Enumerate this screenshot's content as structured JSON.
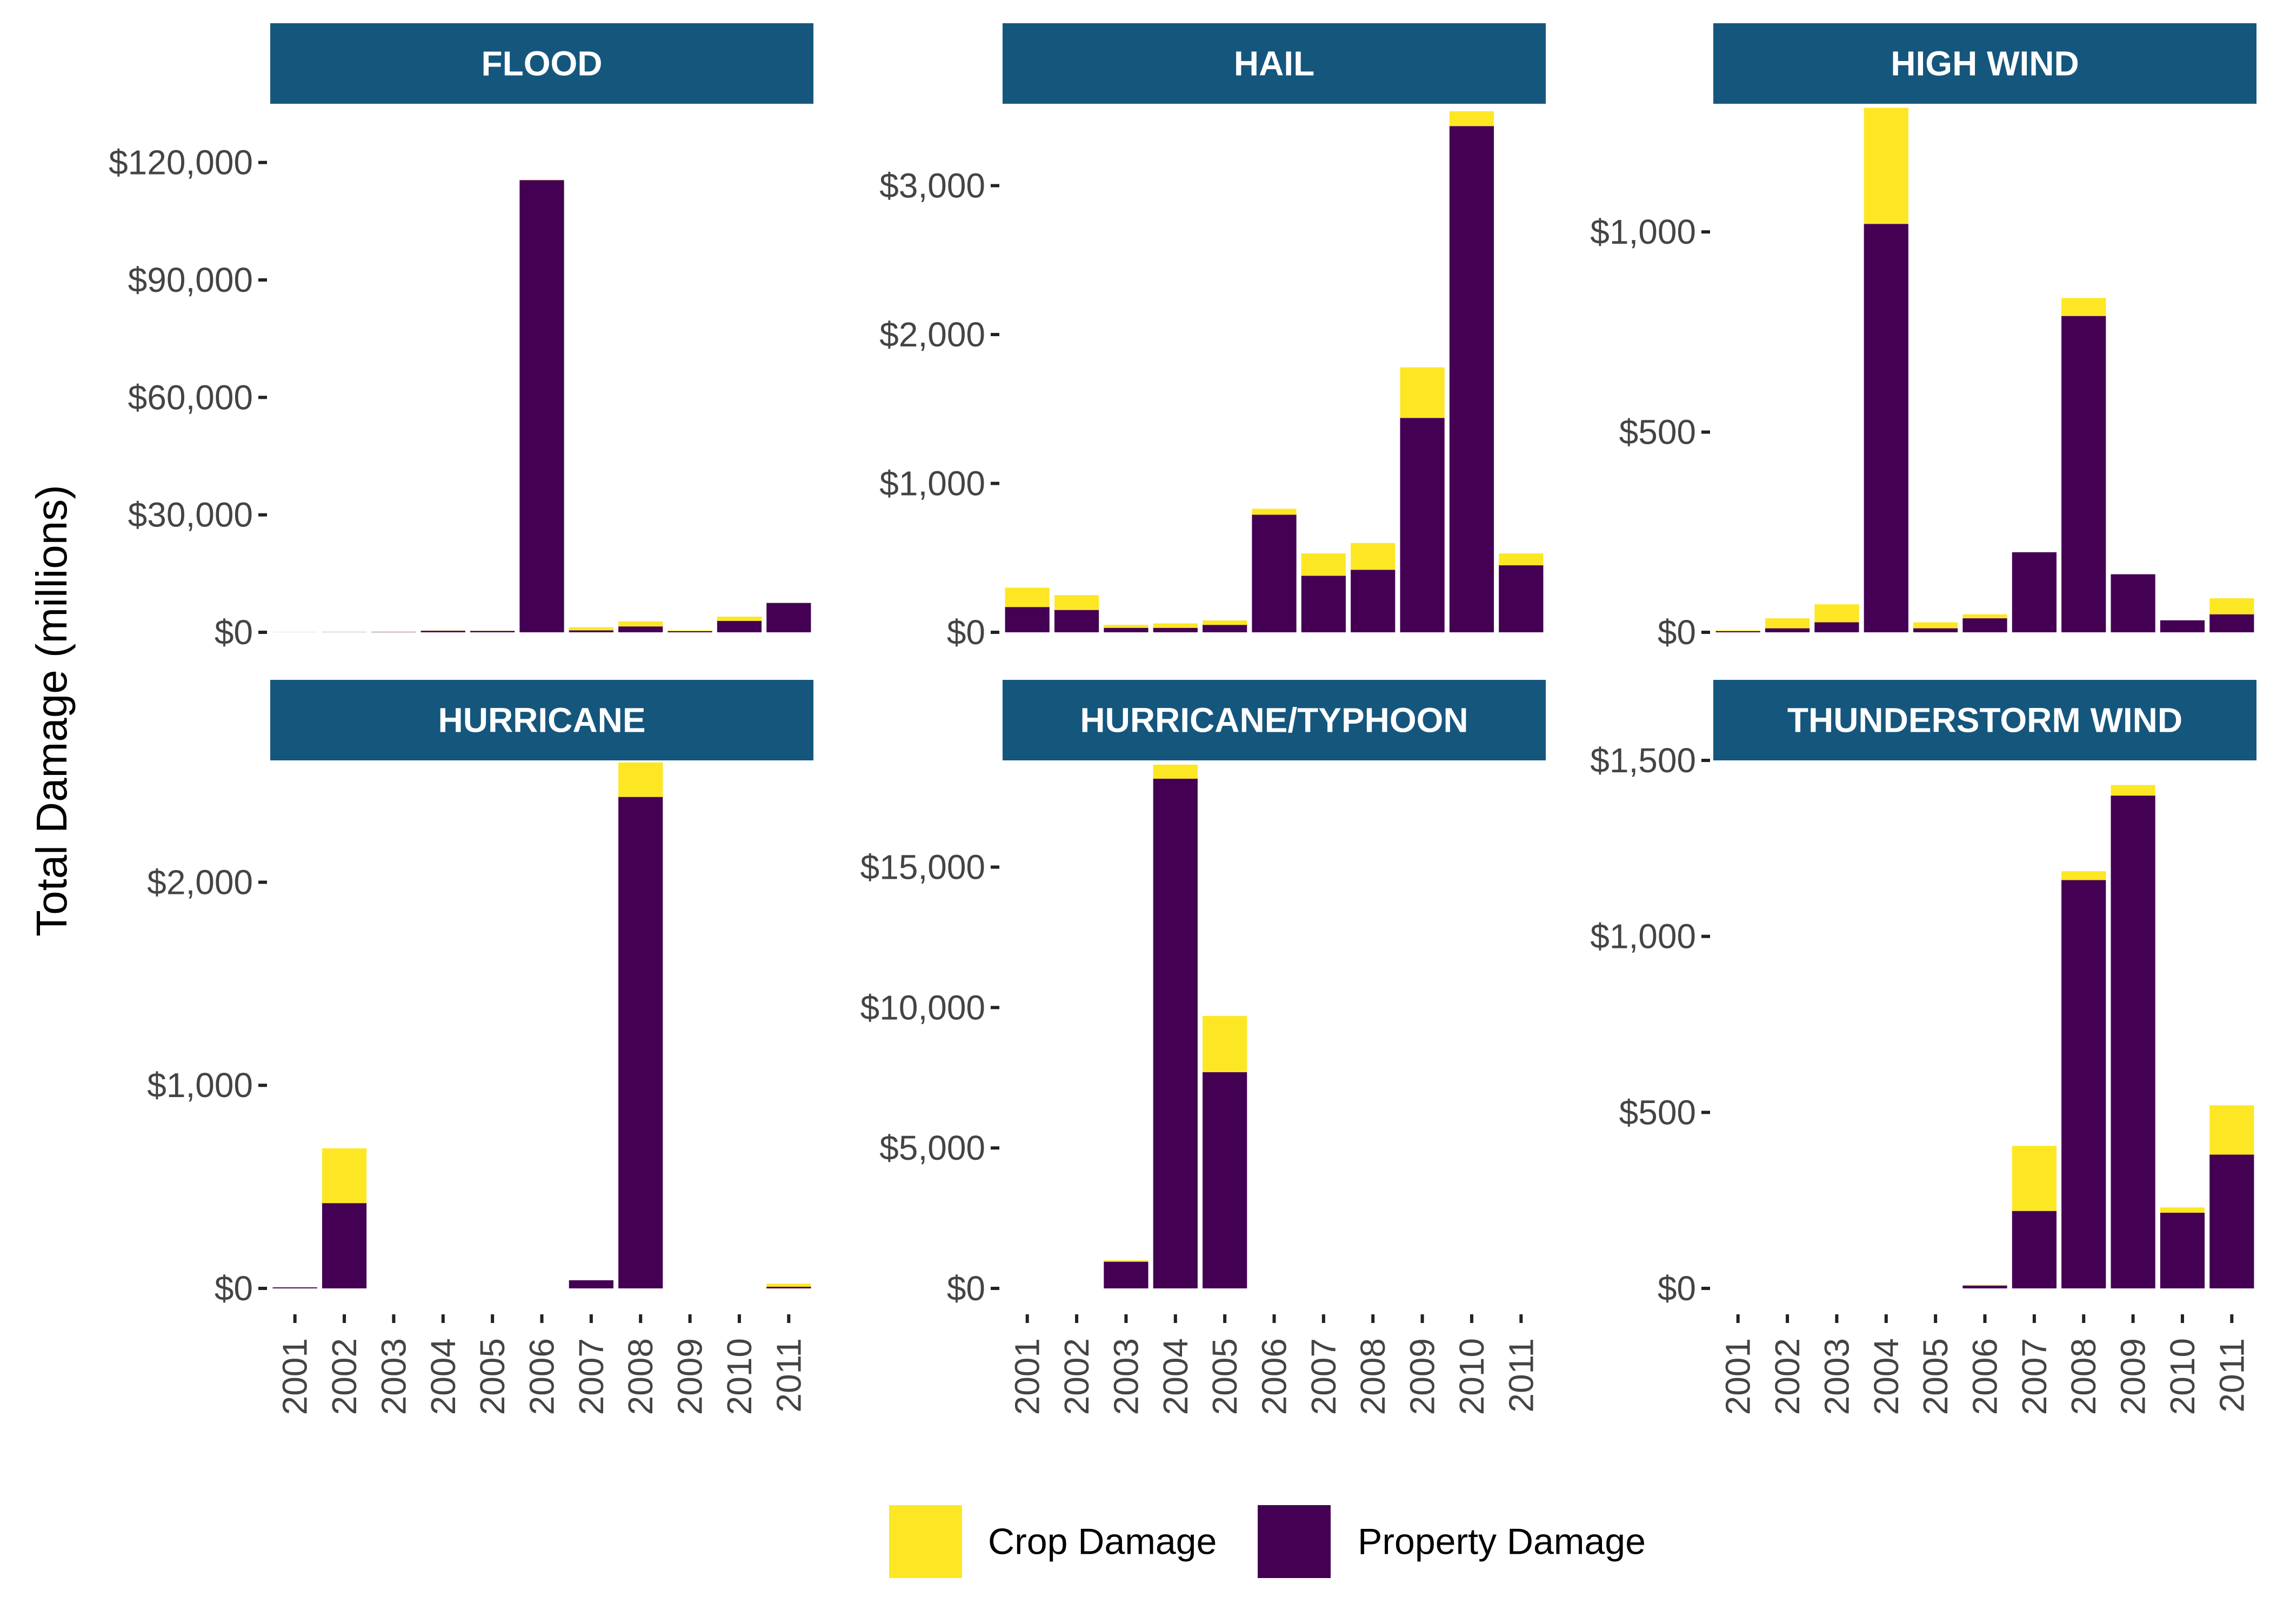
{
  "chart_data": {
    "type": "bar",
    "stacked": true,
    "facet_layout": "3 columns x 2 rows, independent y scales",
    "ylabel": "Total Damage (millions)",
    "x": [
      "2001",
      "2002",
      "2003",
      "2004",
      "2005",
      "2006",
      "2007",
      "2008",
      "2009",
      "2010",
      "2011"
    ],
    "series_names": [
      "Crop Damage",
      "Property Damage"
    ],
    "colors": {
      "crop": "#FDE725",
      "property": "#440154",
      "strip": "#15567D"
    },
    "legend": {
      "position": "bottom",
      "items": [
        {
          "label": "Crop Damage",
          "key": "crop"
        },
        {
          "label": "Property Damage",
          "key": "property"
        }
      ]
    },
    "panels": [
      {
        "title": "FLOOD",
        "ylim": [
          0,
          135000
        ],
        "yticks": [
          0,
          30000,
          60000,
          90000,
          120000
        ],
        "ytick_labels": [
          "$0",
          "$30,000",
          "$60,000",
          "$90,000",
          "$120,000"
        ],
        "show_x_ticks": false,
        "property": [
          20,
          50,
          80,
          400,
          350,
          115500,
          500,
          1500,
          300,
          2900,
          7500
        ],
        "crop": [
          10,
          20,
          30,
          50,
          50,
          100,
          800,
          1300,
          200,
          1100,
          0
        ]
      },
      {
        "title": "HAIL",
        "ylim": [
          0,
          3550
        ],
        "yticks": [
          0,
          1000,
          2000,
          3000
        ],
        "ytick_labels": [
          "$0",
          "$1,000",
          "$2,000",
          "$3,000"
        ],
        "show_x_ticks": false,
        "property": [
          170,
          150,
          30,
          30,
          50,
          790,
          380,
          420,
          1440,
          3400,
          450
        ],
        "crop": [
          130,
          100,
          20,
          30,
          30,
          40,
          150,
          180,
          340,
          100,
          80
        ]
      },
      {
        "title": "HIGH WIND",
        "ylim": [
          0,
          1320
        ],
        "yticks": [
          0,
          500,
          1000
        ],
        "ytick_labels": [
          "$0",
          "$500",
          "$1,000"
        ],
        "show_x_ticks": false,
        "property": [
          3,
          10,
          25,
          1020,
          10,
          35,
          200,
          790,
          145,
          30,
          45
        ],
        "crop": [
          2,
          25,
          45,
          290,
          15,
          10,
          0,
          45,
          0,
          0,
          40
        ]
      },
      {
        "title": "HURRICANE",
        "ylim": [
          0,
          2600
        ],
        "yticks": [
          0,
          1000,
          2000
        ],
        "ytick_labels": [
          "$0",
          "$1,000",
          "$2,000"
        ],
        "show_x_ticks": true,
        "property": [
          5,
          420,
          0,
          0,
          0,
          0,
          40,
          2420,
          0,
          0,
          8
        ],
        "crop": [
          0,
          270,
          0,
          0,
          0,
          0,
          0,
          170,
          0,
          0,
          15
        ]
      },
      {
        "title": "HURRICANE/TYPHOON",
        "ylim": [
          0,
          18800
        ],
        "yticks": [
          0,
          5000,
          10000,
          15000
        ],
        "ytick_labels": [
          "$0",
          "$5,000",
          "$10,000",
          "$15,000"
        ],
        "show_x_ticks": true,
        "property": [
          0,
          0,
          950,
          18150,
          7700,
          0,
          0,
          0,
          0,
          0,
          0
        ],
        "crop": [
          0,
          0,
          50,
          500,
          2000,
          0,
          0,
          0,
          0,
          0,
          0
        ]
      },
      {
        "title": "THUNDERSTORM WIND",
        "ylim": [
          0,
          1500
        ],
        "yticks": [
          0,
          500,
          1000,
          1500
        ],
        "ytick_labels": [
          "$0",
          "$500",
          "$1,000",
          "$1,500"
        ],
        "show_x_ticks": true,
        "property": [
          0,
          0,
          0,
          0,
          0,
          8,
          220,
          1160,
          1400,
          215,
          380
        ],
        "crop": [
          0,
          0,
          0,
          0,
          0,
          2,
          185,
          25,
          30,
          15,
          140
        ]
      }
    ]
  }
}
